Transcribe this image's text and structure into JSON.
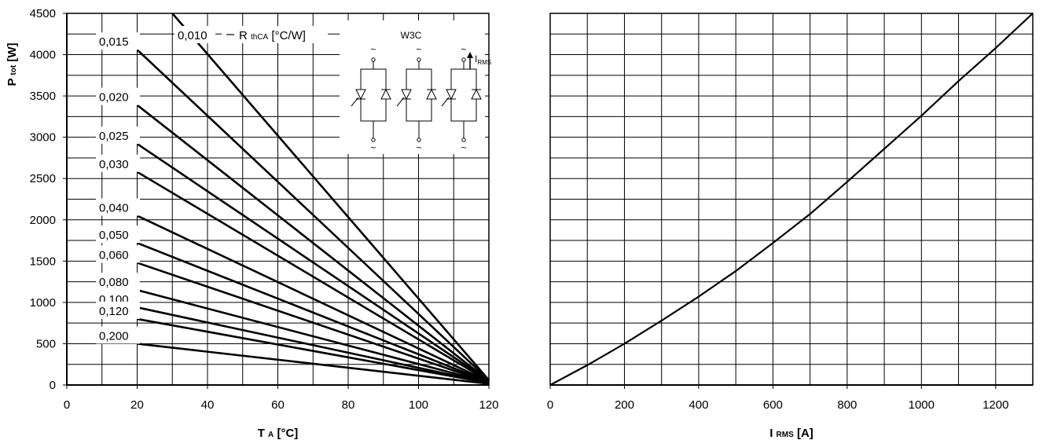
{
  "chart_data": [
    {
      "type": "line",
      "title": "",
      "xlabel": "T",
      "xlabel_sub": "A",
      "xlabel_unit": "[°C]",
      "ylabel": "P",
      "ylabel_sub": "tot",
      "ylabel_unit": "[W]",
      "xlim": [
        0,
        120
      ],
      "ylim": [
        0,
        4500
      ],
      "x_ticks": [
        0,
        20,
        40,
        60,
        80,
        100,
        120
      ],
      "y_ticks": [
        0,
        500,
        1000,
        1500,
        2000,
        2500,
        3000,
        3500,
        4000,
        4500
      ],
      "grid": true,
      "legend_title": "R",
      "legend_title_sub": "thCA",
      "legend_title_unit": "[°C/W]",
      "series": [
        {
          "name": "0,010",
          "x": [
            30,
            120
          ],
          "y": [
            4500,
            60
          ]
        },
        {
          "name": "0,015",
          "x": [
            20,
            120
          ],
          "y": [
            4060,
            60
          ]
        },
        {
          "name": "0,020",
          "x": [
            20,
            120
          ],
          "y": [
            3390,
            50
          ]
        },
        {
          "name": "0,025",
          "x": [
            20,
            120
          ],
          "y": [
            2920,
            50
          ]
        },
        {
          "name": "0,030",
          "x": [
            20,
            120
          ],
          "y": [
            2580,
            45
          ]
        },
        {
          "name": "0,040",
          "x": [
            20,
            120
          ],
          "y": [
            2050,
            40
          ]
        },
        {
          "name": "0,050",
          "x": [
            20,
            120
          ],
          "y": [
            1720,
            35
          ]
        },
        {
          "name": "0,060",
          "x": [
            20,
            120
          ],
          "y": [
            1480,
            30
          ]
        },
        {
          "name": "0,080",
          "x": [
            20,
            120
          ],
          "y": [
            1150,
            30
          ]
        },
        {
          "name": "0,100",
          "x": [
            20,
            120
          ],
          "y": [
            940,
            25
          ]
        },
        {
          "name": "0,120",
          "x": [
            20,
            120
          ],
          "y": [
            800,
            25
          ]
        },
        {
          "name": "0,200",
          "x": [
            20,
            120
          ],
          "y": [
            500,
            15
          ]
        }
      ],
      "inset": {
        "title": "W3C",
        "current_label": "I",
        "current_sub": "RMS",
        "ac_symbol": "~"
      }
    },
    {
      "type": "line",
      "title": "",
      "xlabel": "I",
      "xlabel_sub": "RMS",
      "xlabel_unit": "[A]",
      "xlim": [
        0,
        1300
      ],
      "ylim": [
        0,
        4500
      ],
      "x_ticks": [
        0,
        200,
        400,
        600,
        800,
        1000,
        1200
      ],
      "grid": true,
      "series": [
        {
          "x": [
            0,
            100,
            200,
            300,
            400,
            500,
            600,
            700,
            800,
            900,
            1000,
            1100,
            1200,
            1300
          ],
          "y": [
            0,
            240,
            500,
            780,
            1070,
            1380,
            1720,
            2070,
            2460,
            2860,
            3260,
            3680,
            4080,
            4500
          ]
        }
      ]
    }
  ]
}
